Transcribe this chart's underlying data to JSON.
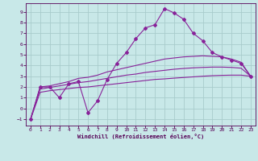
{
  "xlabel": "Windchill (Refroidissement éolien,°C)",
  "background_color": "#c8e8e8",
  "grid_color": "#a8cccc",
  "line_color": "#882299",
  "xlim": [
    -0.5,
    23.5
  ],
  "ylim": [
    -1.6,
    9.8
  ],
  "xticks": [
    0,
    1,
    2,
    3,
    4,
    5,
    6,
    7,
    8,
    9,
    10,
    11,
    12,
    13,
    14,
    15,
    16,
    17,
    18,
    19,
    20,
    21,
    22,
    23
  ],
  "yticks": [
    -1,
    0,
    1,
    2,
    3,
    4,
    5,
    6,
    7,
    8,
    9
  ],
  "series1_x": [
    0,
    1,
    2,
    3,
    4,
    5,
    6,
    7,
    8,
    9,
    10,
    11,
    12,
    13,
    14,
    15,
    16,
    17,
    18,
    19,
    20,
    21,
    22,
    23
  ],
  "series1_y": [
    -1.0,
    2.0,
    2.0,
    1.0,
    2.3,
    2.5,
    -0.4,
    0.7,
    2.7,
    4.2,
    5.2,
    6.5,
    7.5,
    7.8,
    9.3,
    8.9,
    8.3,
    7.0,
    6.3,
    5.2,
    4.8,
    4.5,
    4.2,
    3.0
  ],
  "series2_x": [
    0,
    1,
    2,
    3,
    4,
    5,
    6,
    7,
    8,
    9,
    10,
    11,
    12,
    13,
    14,
    15,
    16,
    17,
    18,
    19,
    20,
    21,
    22,
    23
  ],
  "series2_y": [
    -1.0,
    2.0,
    2.1,
    2.3,
    2.5,
    2.8,
    2.9,
    3.1,
    3.4,
    3.6,
    3.8,
    4.0,
    4.2,
    4.4,
    4.6,
    4.7,
    4.8,
    4.85,
    4.9,
    4.85,
    4.8,
    4.6,
    4.3,
    3.0
  ],
  "series3_x": [
    0,
    1,
    2,
    3,
    4,
    5,
    6,
    7,
    8,
    9,
    10,
    11,
    12,
    13,
    14,
    15,
    16,
    17,
    18,
    19,
    20,
    21,
    22,
    23
  ],
  "series3_y": [
    -1.0,
    1.8,
    1.95,
    2.1,
    2.25,
    2.4,
    2.5,
    2.65,
    2.8,
    2.95,
    3.1,
    3.2,
    3.35,
    3.45,
    3.55,
    3.65,
    3.72,
    3.78,
    3.82,
    3.85,
    3.85,
    3.82,
    3.75,
    3.0
  ],
  "series4_x": [
    0,
    1,
    2,
    3,
    4,
    5,
    6,
    7,
    8,
    9,
    10,
    11,
    12,
    13,
    14,
    15,
    16,
    17,
    18,
    19,
    20,
    21,
    22,
    23
  ],
  "series4_y": [
    -1.0,
    1.5,
    1.65,
    1.75,
    1.85,
    1.95,
    2.0,
    2.1,
    2.2,
    2.3,
    2.4,
    2.5,
    2.6,
    2.7,
    2.75,
    2.82,
    2.88,
    2.94,
    3.0,
    3.05,
    3.08,
    3.1,
    3.1,
    3.0
  ]
}
